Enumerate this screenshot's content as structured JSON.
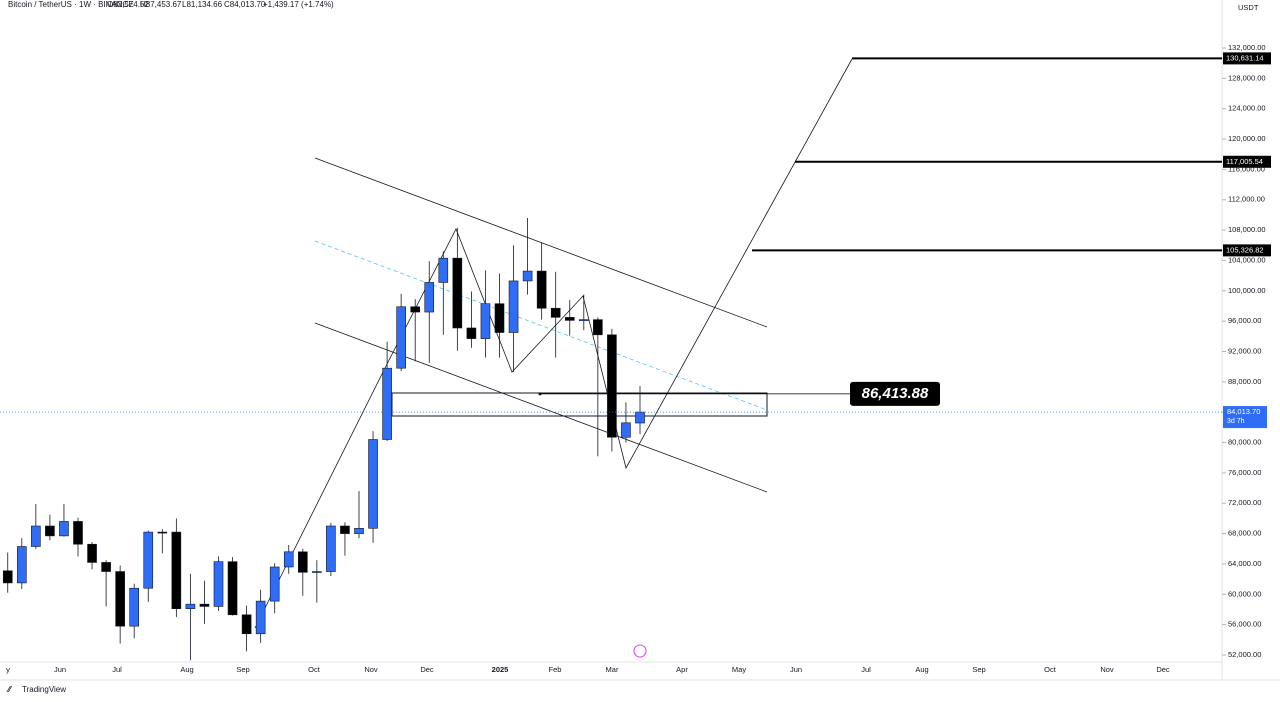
{
  "chart_data": {
    "type": "candlestick",
    "title": "Bitcoin / TetherUS · 1W · BINANCE",
    "ohlc_header": [
      "O82,574.52",
      "H87,453.67",
      "L81,134.66",
      "C84,013.70",
      "+1,439.17 (+1.74%)"
    ],
    "currency": "USDT",
    "brand": "TradingView",
    "up_color": "#2f6df6",
    "down_color": "#000000",
    "ylim": [
      50000,
      138000
    ],
    "yticks": [
      {
        "value": 52000,
        "label": "52,000.00"
      },
      {
        "value": 56000,
        "label": "56,000.00"
      },
      {
        "value": 60000,
        "label": "60,000.00"
      },
      {
        "value": 64000,
        "label": "64,000.00"
      },
      {
        "value": 68000,
        "label": "68,000.00"
      },
      {
        "value": 72000,
        "label": "72,000.00"
      },
      {
        "value": 76000,
        "label": "76,000.00"
      },
      {
        "value": 80000,
        "label": "80,000.00"
      },
      {
        "value": 84000,
        "label": "84,000.00"
      },
      {
        "value": 88000,
        "label": "88,000.00"
      },
      {
        "value": 92000,
        "label": "92,000.00"
      },
      {
        "value": 96000,
        "label": "96,000.00"
      },
      {
        "value": 100000,
        "label": "100,000.00"
      },
      {
        "value": 104000,
        "label": "104,000.00"
      },
      {
        "value": 108000,
        "label": "108,000.00"
      },
      {
        "value": 112000,
        "label": "112,000.00"
      },
      {
        "value": 116000,
        "label": "116,000.00"
      },
      {
        "value": 120000,
        "label": "120,000.00"
      },
      {
        "value": 124000,
        "label": "124,000.00"
      },
      {
        "value": 128000,
        "label": "128,000.00"
      },
      {
        "value": 132000,
        "label": "132,000.00"
      }
    ],
    "x_labels": [
      "y",
      "Jun",
      "Jul",
      "Aug",
      "Sep",
      "Oct",
      "Nov",
      "Dec",
      "2025",
      "Feb",
      "Mar",
      "Apr",
      "May",
      "Jun",
      "Jul",
      "Aug",
      "Sep",
      "Oct",
      "Nov",
      "Dec"
    ],
    "open": [
      63100,
      61500,
      66300,
      69000,
      67700,
      69600,
      66600,
      64200,
      63000,
      55800,
      60800,
      68200,
      68200,
      58100,
      58700,
      58400,
      64300,
      57300,
      54800,
      59100,
      63600,
      65600,
      62900,
      63000,
      69000,
      68000,
      68700,
      80400,
      89800,
      97900,
      97200,
      101100,
      104300,
      95100,
      93700,
      98300,
      94500,
      101300,
      102600,
      97700,
      96500,
      96100,
      96200,
      94200,
      80700,
      82574.52
    ],
    "high": [
      65500,
      67400,
      71900,
      70500,
      71900,
      70100,
      66900,
      64500,
      63800,
      61400,
      68400,
      68600,
      70000,
      62700,
      61800,
      65000,
      64900,
      58500,
      60600,
      64100,
      66500,
      66000,
      64500,
      69400,
      69500,
      73600,
      81500,
      93300,
      99600,
      98900,
      103900,
      105200,
      108300,
      99900,
      102700,
      102300,
      106000,
      109600,
      106400,
      102500,
      98800,
      99500,
      96500,
      95000,
      85300,
      87453.67
    ],
    "low": [
      60200,
      60700,
      66000,
      67100,
      67600,
      65000,
      63300,
      58400,
      53500,
      54200,
      59000,
      65400,
      57000,
      51300,
      56100,
      57800,
      57200,
      52500,
      53600,
      57500,
      62700,
      59800,
      58900,
      62400,
      65100,
      67400,
      66800,
      80200,
      89400,
      90700,
      90500,
      94200,
      92100,
      92500,
      91200,
      91200,
      89300,
      99500,
      96200,
      91200,
      94100,
      94800,
      78200,
      78800,
      80000,
      81134.66
    ],
    "close": [
      61500,
      66300,
      69000,
      67700,
      69600,
      66600,
      64200,
      63000,
      55800,
      60800,
      68200,
      68100,
      58100,
      58700,
      58400,
      64300,
      57300,
      54800,
      59100,
      63600,
      65600,
      62900,
      63000,
      69000,
      68000,
      68700,
      80400,
      89800,
      97900,
      97200,
      101100,
      104300,
      95100,
      93700,
      98300,
      94500,
      101300,
      102600,
      97700,
      96500,
      96100,
      96200,
      94200,
      80700,
      82600,
      84013.7
    ],
    "last_price": {
      "value": 84013.7,
      "label": "84,013.70",
      "countdown": "3d 7h"
    },
    "levels": [
      {
        "value": 130631.14,
        "label": "130,631.14"
      },
      {
        "value": 117005.54,
        "label": "117,005.54"
      },
      {
        "value": 105326.82,
        "label": "105,326.82"
      }
    ],
    "annotation": {
      "value": 86413.88,
      "label": "86,413.88"
    }
  }
}
